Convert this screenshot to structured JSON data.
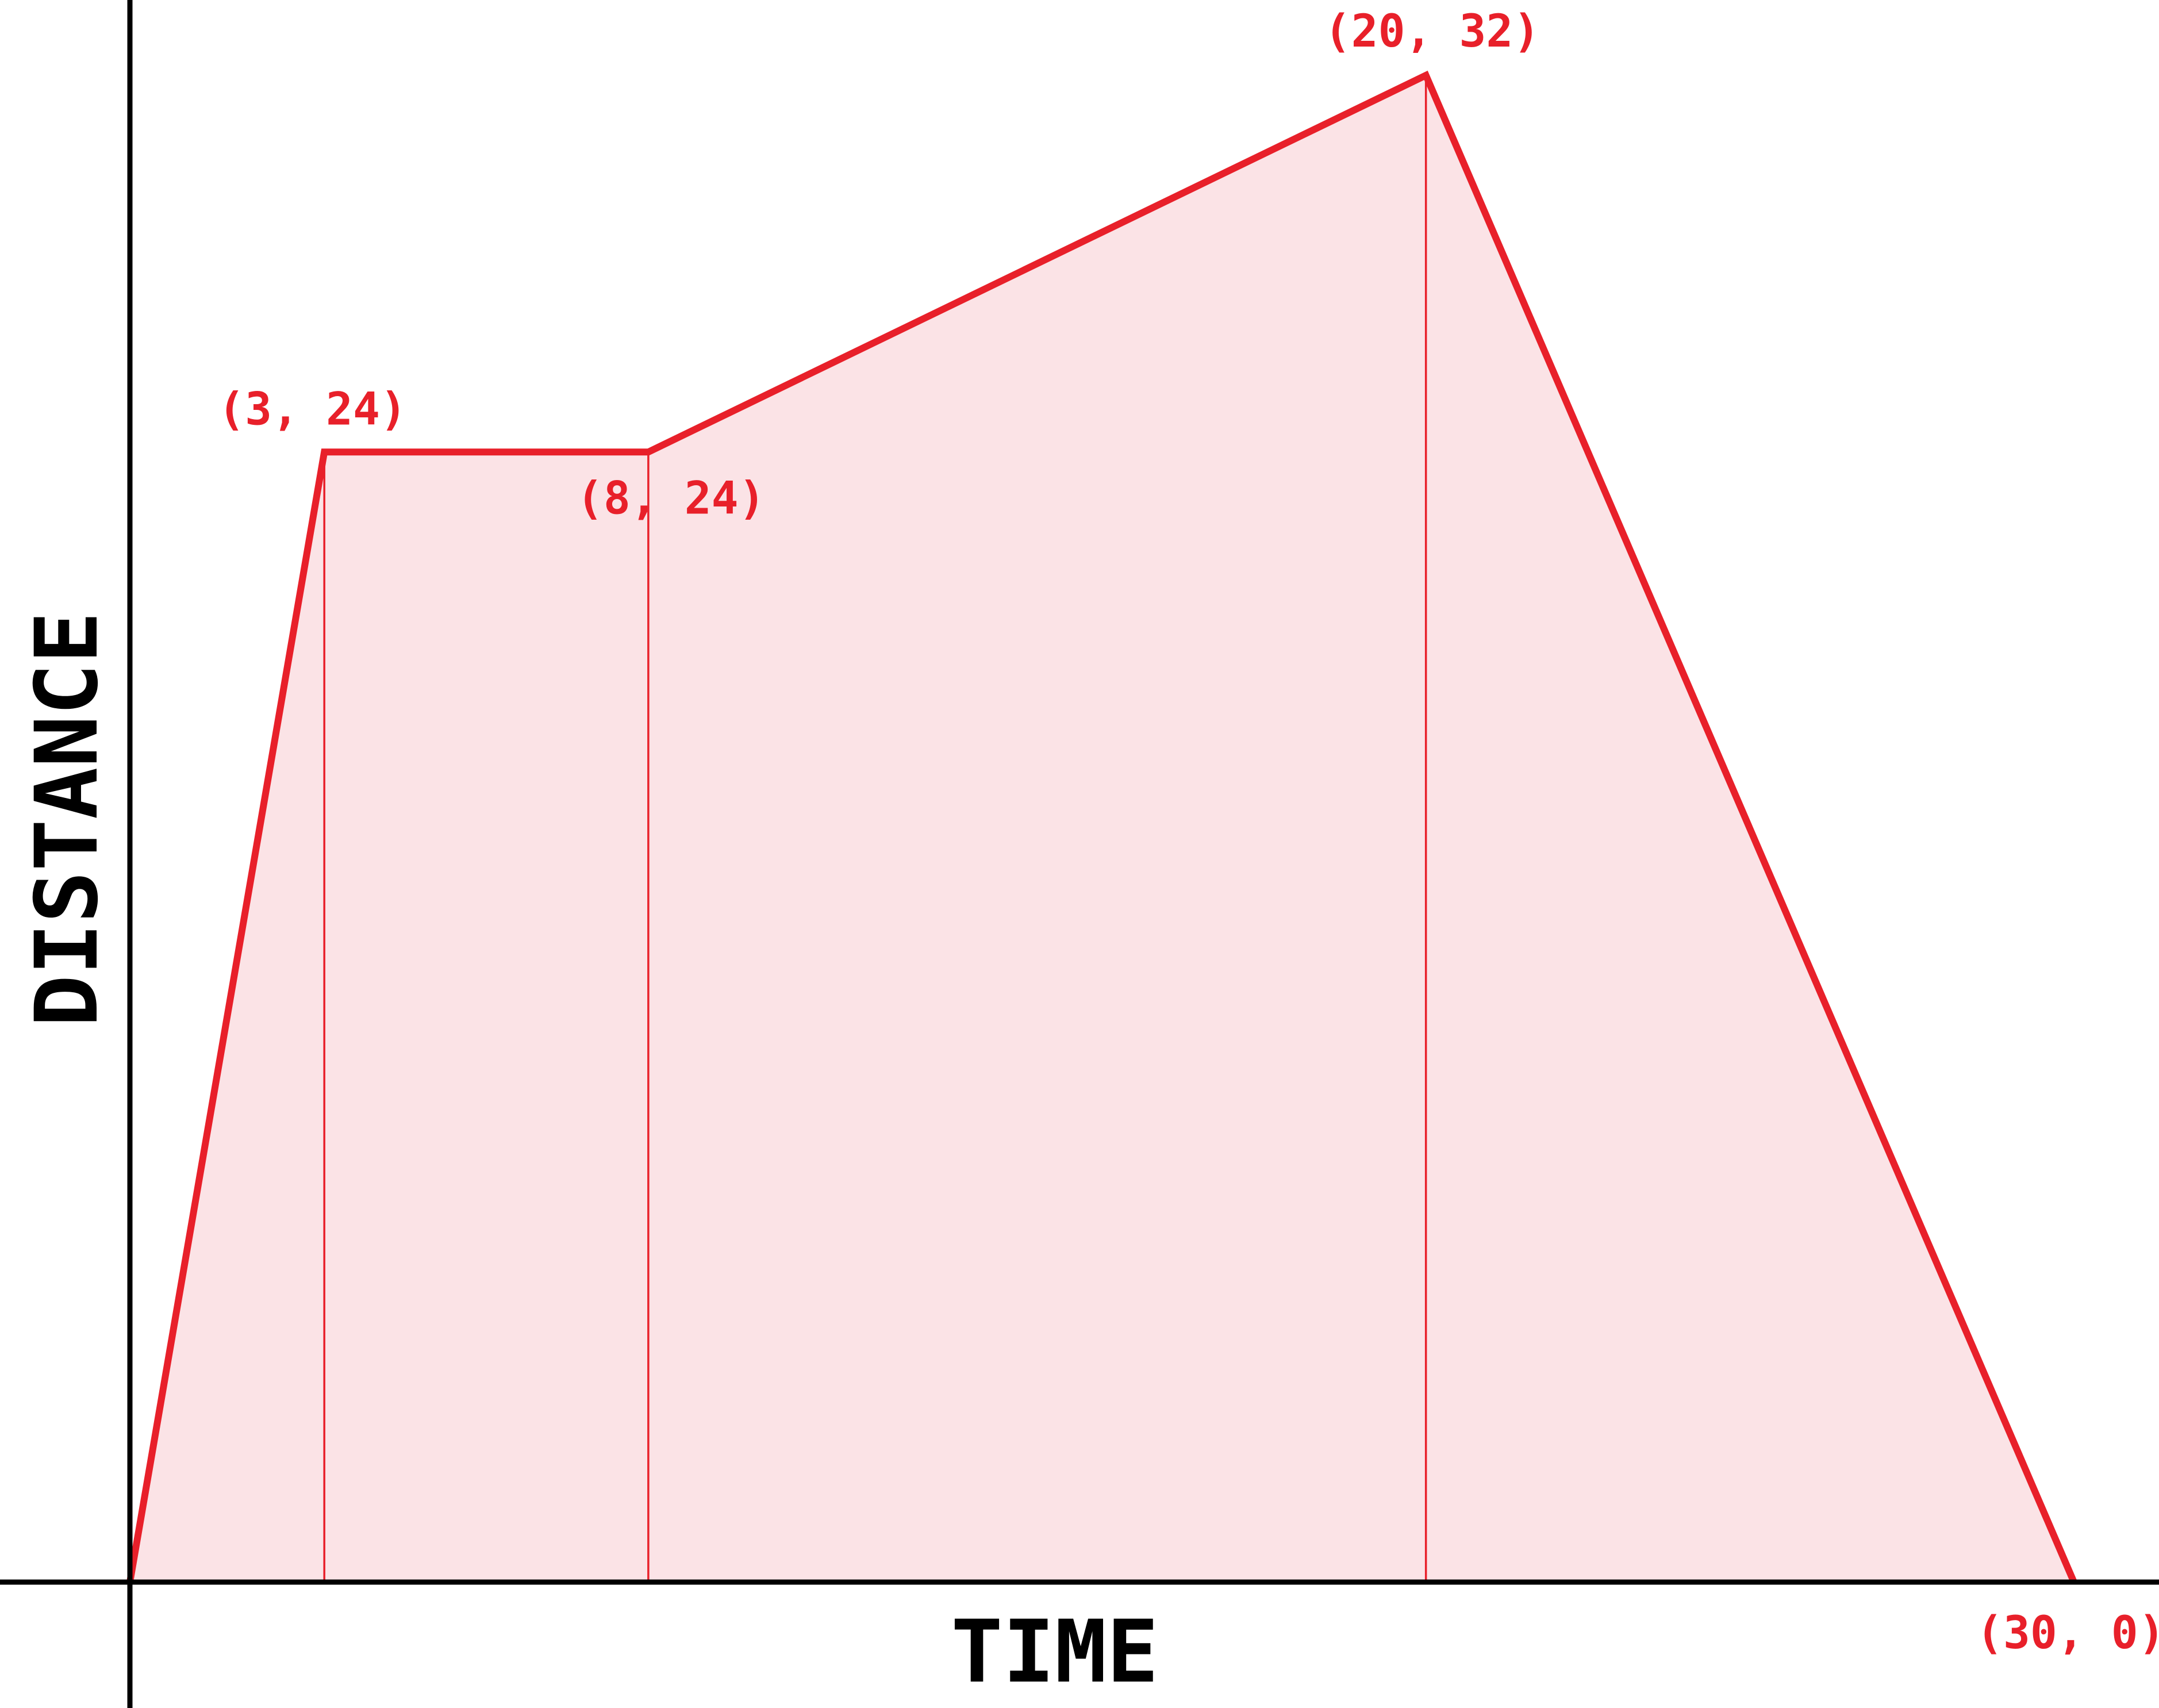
{
  "chart_data": {
    "type": "area",
    "title": "",
    "xlabel": "TIME",
    "ylabel": "DISTANCE",
    "xlim": [
      0,
      30
    ],
    "ylim": [
      0,
      32
    ],
    "grid": false,
    "legend": "none",
    "series": [
      {
        "x": [
          0,
          3,
          8,
          20,
          30
        ],
        "y": [
          0,
          24,
          24,
          32,
          0
        ]
      }
    ],
    "annotations": [
      {
        "text": "(3, 24)",
        "x": 3,
        "y": 24
      },
      {
        "text": "(8, 24)",
        "x": 8,
        "y": 24
      },
      {
        "text": "(20, 32)",
        "x": 20,
        "y": 32
      },
      {
        "text": "(30, 0)",
        "x": 30,
        "y": 0
      }
    ],
    "colors": {
      "line": "#e8202a",
      "fill": "#fbe3e6",
      "drop_lines": "#e8202a",
      "axes": "#000000",
      "labels": "#e8202a"
    }
  }
}
